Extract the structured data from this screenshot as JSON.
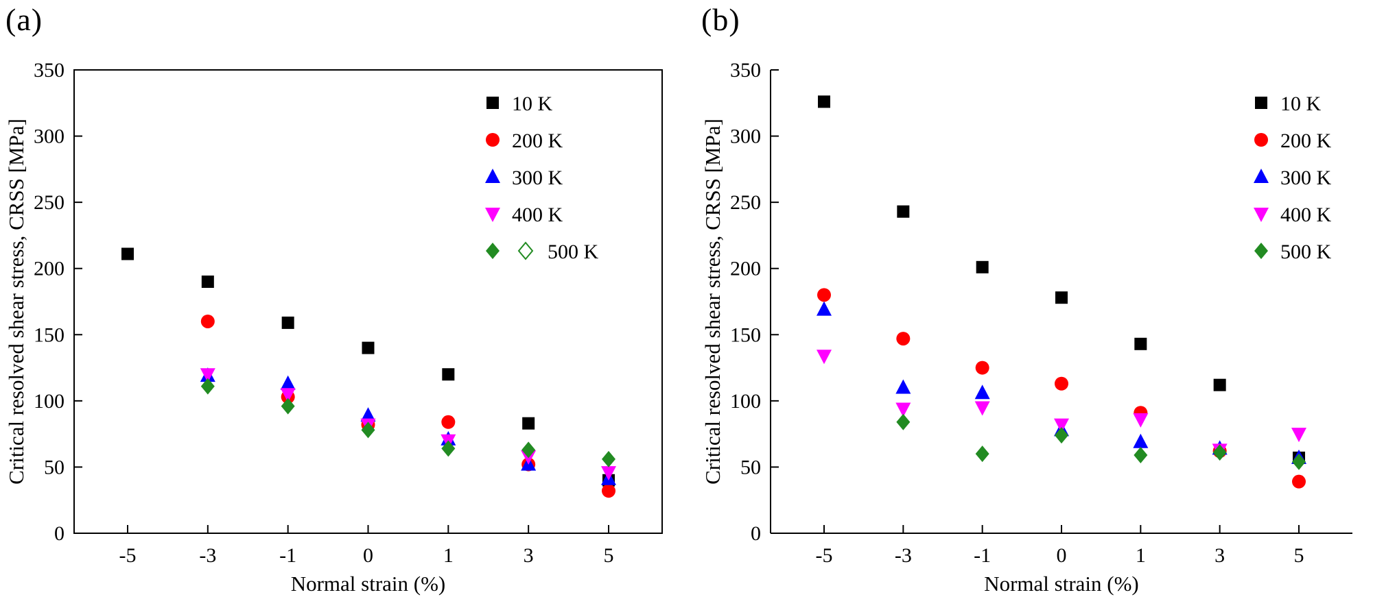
{
  "page": {
    "background": "#ffffff"
  },
  "colors": {
    "k10": "#000000",
    "k200": "#ff0000",
    "k300": "#0000ff",
    "k400": "#ff00ff",
    "k500": "#228B22",
    "axis": "#000000"
  },
  "chart_data": [
    {
      "id": "a",
      "panel_label": "(a)",
      "type": "scatter",
      "xlabel": "Normal strain (%)",
      "ylabel": "Critical resolved shear stress, CRSS [MPa]",
      "x_categories": [
        "-5",
        "-3",
        "-1",
        "0",
        "1",
        "3",
        "5"
      ],
      "ylim": [
        0,
        350
      ],
      "yticks": [
        0,
        50,
        100,
        150,
        200,
        250,
        300,
        350
      ],
      "grid": false,
      "boxed_frame": true,
      "legend_position": "top-right-inside",
      "series": [
        {
          "name": "10 K",
          "marker": "square",
          "color": "#000000",
          "values": [
            211,
            190,
            159,
            140,
            120,
            83,
            40
          ]
        },
        {
          "name": "200 K",
          "marker": "circle",
          "color": "#ff0000",
          "values": [
            null,
            160,
            103,
            82,
            84,
            52,
            32
          ]
        },
        {
          "name": "300 K",
          "marker": "triangle-up",
          "color": "#0000ff",
          "values": [
            null,
            119,
            113,
            89,
            71,
            52,
            41
          ]
        },
        {
          "name": "400 K",
          "marker": "triangle-down",
          "color": "#ff00ff",
          "values": [
            null,
            120,
            105,
            82,
            70,
            58,
            46
          ]
        },
        {
          "name": "500 K",
          "marker": "diamond",
          "color": "#228B22",
          "legend_extra_marker": "diamond-open",
          "values": [
            null,
            111,
            96,
            78,
            64,
            63,
            56
          ]
        }
      ]
    },
    {
      "id": "b",
      "panel_label": "(b)",
      "type": "scatter",
      "xlabel": "Normal strain (%)",
      "ylabel": "Critical resolved shear stress, CRSS [MPa]",
      "x_categories": [
        "-5",
        "-3",
        "-1",
        "0",
        "1",
        "3",
        "5"
      ],
      "ylim": [
        0,
        350
      ],
      "yticks": [
        0,
        50,
        100,
        150,
        200,
        250,
        300,
        350
      ],
      "grid": false,
      "boxed_frame": false,
      "legend_position": "top-right-inside",
      "series": [
        {
          "name": "10 K",
          "marker": "square",
          "color": "#000000",
          "values": [
            326,
            243,
            201,
            178,
            143,
            112,
            57
          ]
        },
        {
          "name": "200 K",
          "marker": "circle",
          "color": "#ff0000",
          "values": [
            180,
            147,
            125,
            113,
            91,
            62,
            39
          ]
        },
        {
          "name": "300 K",
          "marker": "triangle-up",
          "color": "#0000ff",
          "values": [
            169,
            110,
            106,
            78,
            69,
            64,
            57
          ]
        },
        {
          "name": "400 K",
          "marker": "triangle-down",
          "color": "#ff00ff",
          "values": [
            134,
            94,
            95,
            82,
            86,
            63,
            75
          ]
        },
        {
          "name": "500 K",
          "marker": "diamond",
          "color": "#228B22",
          "values": [
            null,
            84,
            60,
            74,
            59,
            61,
            54
          ]
        }
      ]
    }
  ]
}
